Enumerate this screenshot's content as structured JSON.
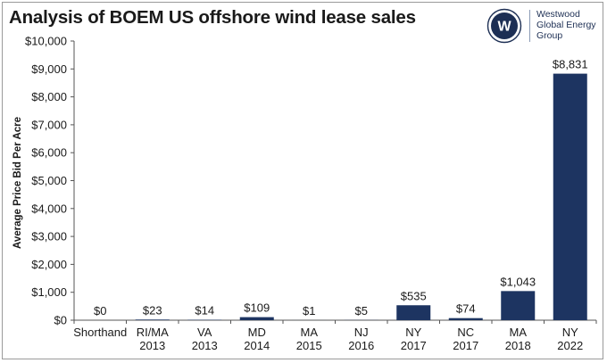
{
  "chart_data": {
    "type": "bar",
    "title": "Analysis of BOEM US offshore wind lease sales",
    "ylabel": "Average Price Bid Per Acre",
    "xlabel": "",
    "ylim": [
      0,
      10000
    ],
    "yticks": [
      "$0",
      "$1,000",
      "$2,000",
      "$3,000",
      "$4,000",
      "$5,000",
      "$6,000",
      "$7,000",
      "$8,000",
      "$9,000",
      "$10,000"
    ],
    "categories": [
      [
        "Shorthand"
      ],
      [
        "RI/MA",
        "2013"
      ],
      [
        "VA",
        "2013"
      ],
      [
        "MD",
        "2014"
      ],
      [
        "MA",
        "2015"
      ],
      [
        "NJ",
        "2016"
      ],
      [
        "NY",
        "2017"
      ],
      [
        "NC",
        "2017"
      ],
      [
        "MA",
        "2018"
      ],
      [
        "NY",
        "2022"
      ]
    ],
    "values": [
      0,
      23,
      14,
      109,
      1,
      5,
      535,
      74,
      1043,
      8831
    ],
    "data_labels": [
      "$0",
      "$23",
      "$14",
      "$109",
      "$1",
      "$5",
      "$535",
      "$74",
      "$1,043",
      "$8,831"
    ],
    "bar_color": "#1d3461",
    "grid": false,
    "legend": "none"
  },
  "logo": {
    "letter": "W",
    "text": "Westwood\nGlobal Energy\nGroup",
    "color": "#1d2f54"
  }
}
